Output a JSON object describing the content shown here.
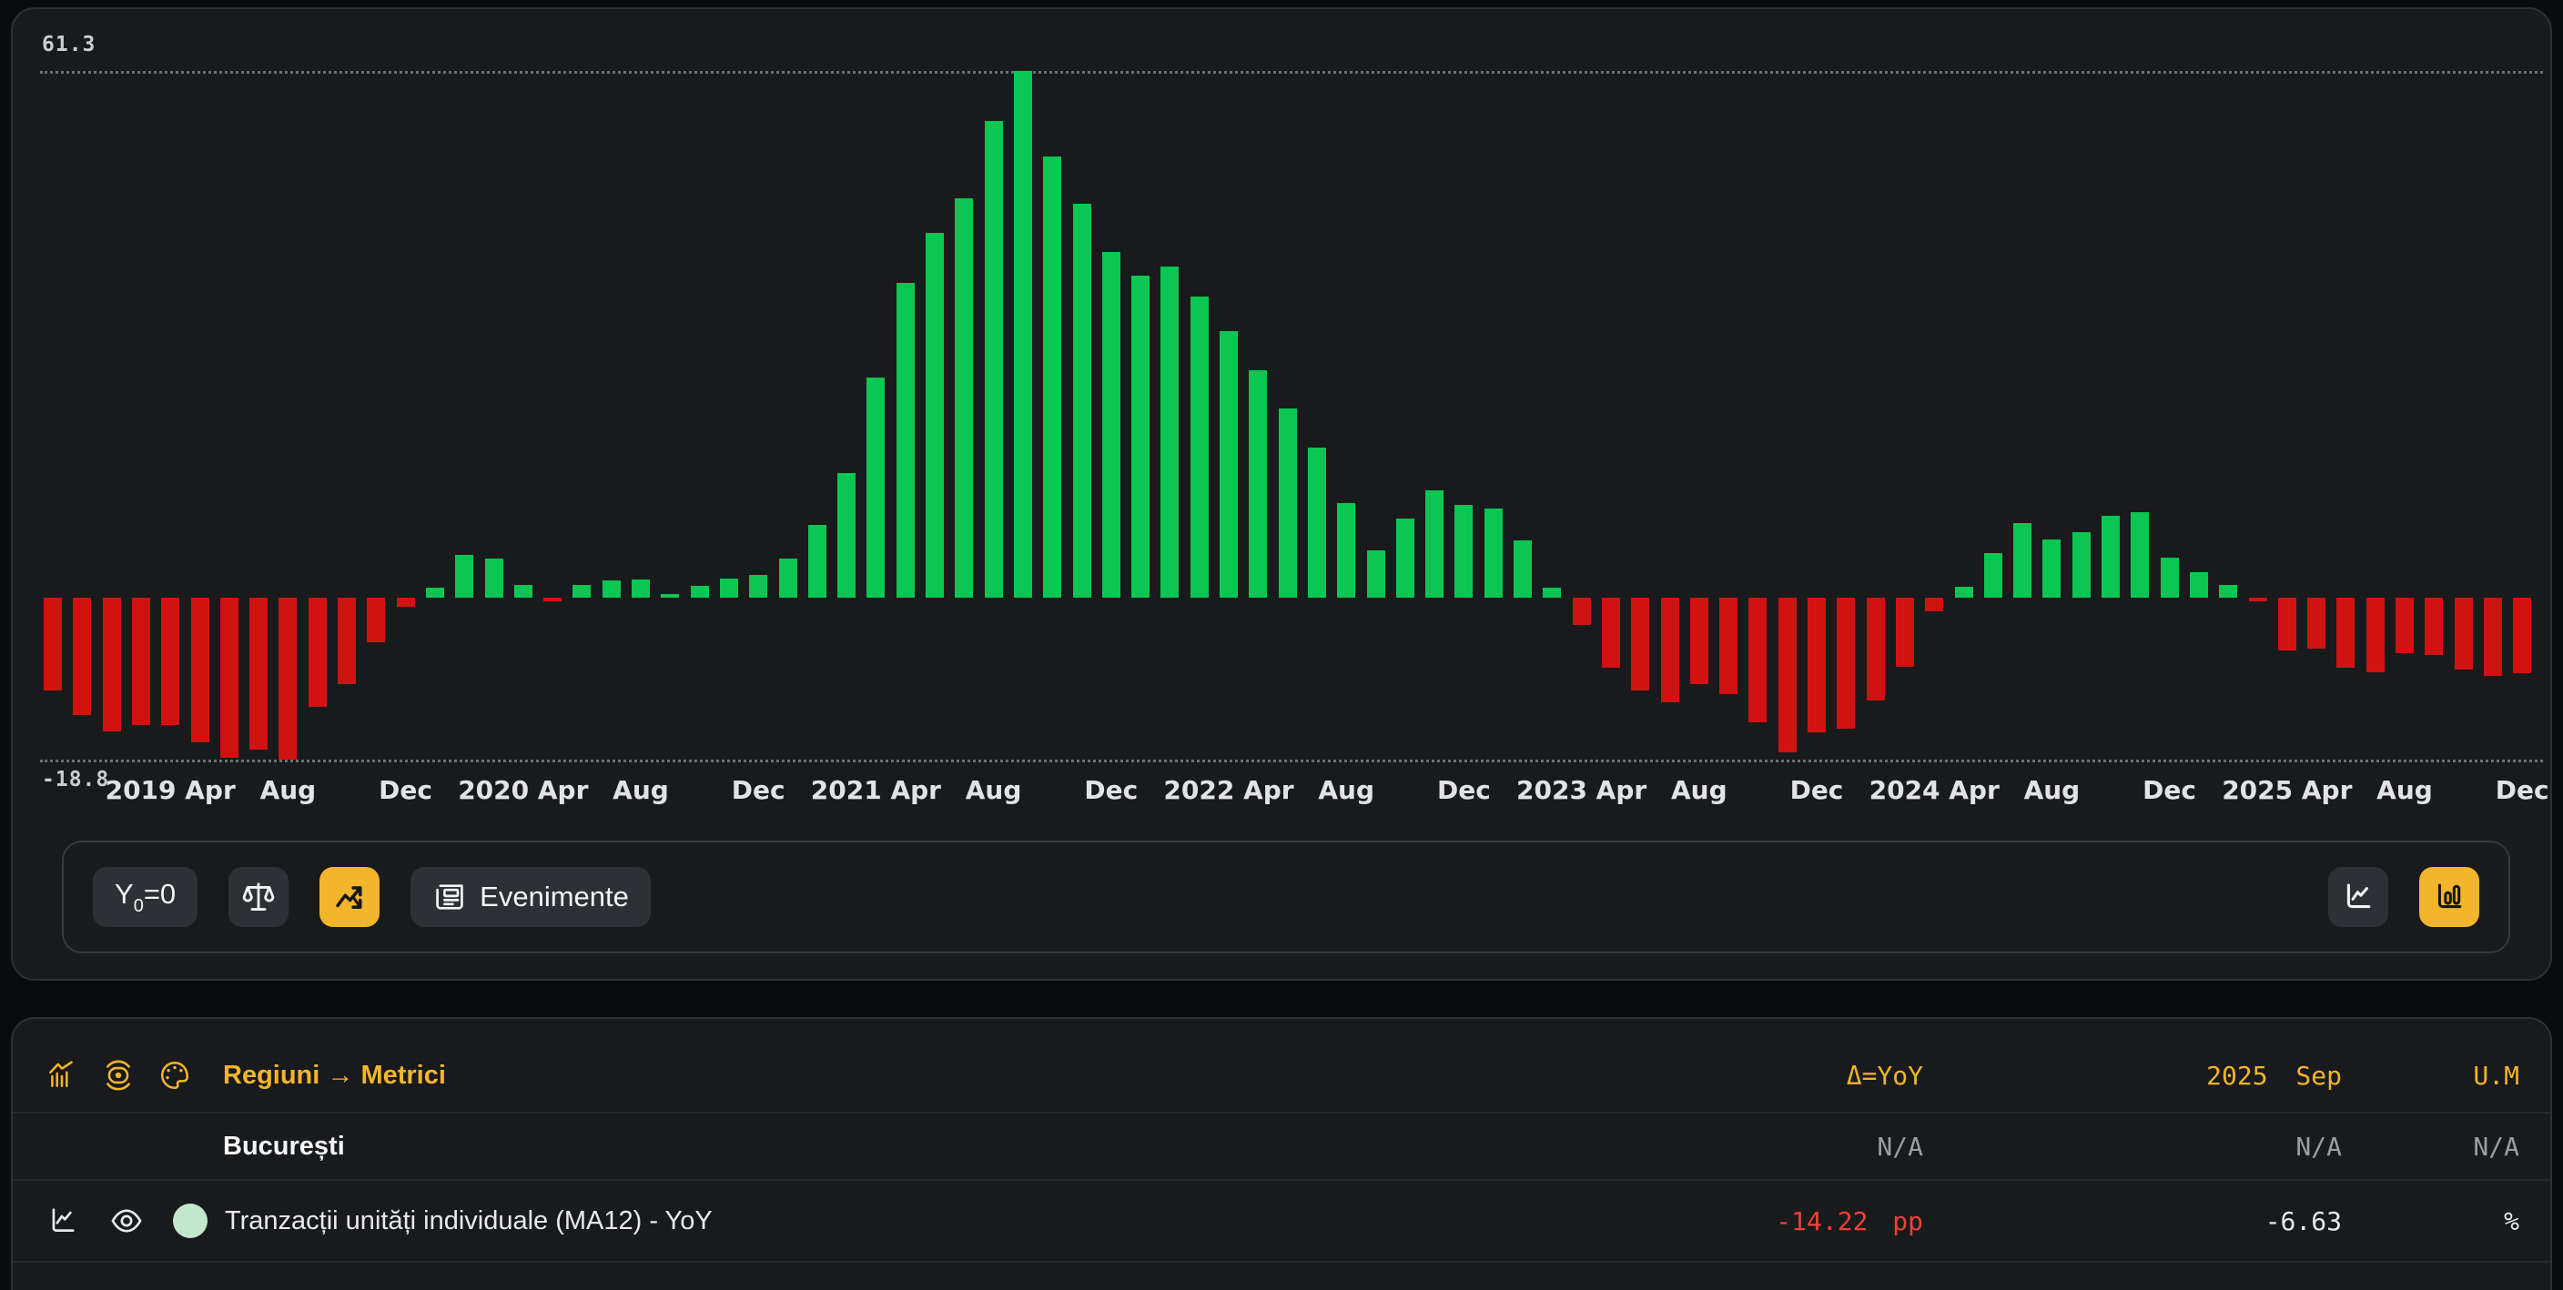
{
  "chart_data": {
    "type": "bar",
    "title": "Tranzacții unități individuale (MA12) - YoY — București",
    "ylabel": "pp YoY",
    "ymax": 61.3,
    "ymin": -18.8,
    "ymax_label": "61.3",
    "ymin_label": "-18.8",
    "grid": "dotted min/max guides only",
    "legend_position": "none",
    "positive_color": "#0cc653",
    "negative_color": "#d01211",
    "categories": [
      "2018 Dec",
      "2019 Jan",
      "2019 Feb",
      "2019 Mar",
      "2019 Apr",
      "2019 May",
      "2019 Jun",
      "2019 Jul",
      "2019 Aug",
      "2019 Sep",
      "2019 Oct",
      "2019 Nov",
      "2019 Dec",
      "2020 Jan",
      "2020 Feb",
      "2020 Mar",
      "2020 Apr",
      "2020 May",
      "2020 Jun",
      "2020 Jul",
      "2020 Aug",
      "2020 Sep",
      "2020 Oct",
      "2020 Nov",
      "2020 Dec",
      "2021 Jan",
      "2021 Feb",
      "2021 Mar",
      "2021 Apr",
      "2021 May",
      "2021 Jun",
      "2021 Jul",
      "2021 Aug",
      "2021 Sep",
      "2021 Oct",
      "2021 Nov",
      "2021 Dec",
      "2022 Jan",
      "2022 Feb",
      "2022 Mar",
      "2022 Apr",
      "2022 May",
      "2022 Jun",
      "2022 Jul",
      "2022 Aug",
      "2022 Sep",
      "2022 Oct",
      "2022 Nov",
      "2022 Dec",
      "2023 Jan",
      "2023 Feb",
      "2023 Mar",
      "2023 Apr",
      "2023 May",
      "2023 Jun",
      "2023 Jul",
      "2023 Aug",
      "2023 Sep",
      "2023 Oct",
      "2023 Nov",
      "2023 Dec",
      "2024 Jan",
      "2024 Feb",
      "2024 Mar",
      "2024 Apr",
      "2024 May",
      "2024 Jun",
      "2024 Jul",
      "2024 Aug",
      "2024 Sep",
      "2024 Oct",
      "2024 Nov",
      "2024 Dec",
      "2025 Jan",
      "2025 Feb",
      "2025 Mar",
      "2025 Apr",
      "2025 May",
      "2025 Jun",
      "2025 Jul",
      "2025 Aug",
      "2025 Sep",
      "2025 Oct",
      "2025 Nov",
      "2025 Dec"
    ],
    "values": [
      -10.8,
      -13.6,
      -15.6,
      -14.8,
      -14.8,
      -16.8,
      -18.6,
      -17.7,
      -18.8,
      -12.7,
      -10.0,
      -5.2,
      -1.1,
      1.2,
      5.0,
      4.5,
      1.5,
      -0.3,
      1.5,
      2.0,
      2.1,
      0.4,
      1.4,
      2.2,
      2.6,
      4.5,
      8.5,
      14.5,
      25.6,
      36.6,
      42.4,
      46.5,
      55.4,
      61.3,
      51.3,
      45.8,
      40.2,
      37.5,
      38.5,
      35.0,
      31.0,
      26.5,
      22.0,
      17.5,
      11.0,
      5.5,
      9.2,
      12.5,
      10.8,
      10.4,
      6.7,
      1.2,
      -3.2,
      -8.2,
      -10.8,
      -12.2,
      -10.0,
      -11.2,
      -14.5,
      -18.0,
      -15.7,
      -15.2,
      -12.0,
      -8.0,
      -1.6,
      1.3,
      5.2,
      8.7,
      6.8,
      7.6,
      9.5,
      10.0,
      4.7,
      3.0,
      1.5,
      -0.2,
      -6.1,
      -5.9,
      -8.2,
      -8.7,
      -6.5,
      -6.63,
      -8.4,
      -9.1,
      -8.8
    ],
    "x_ticks": [
      {
        "index": 4,
        "label": "2019 Apr"
      },
      {
        "index": 8,
        "label": "Aug"
      },
      {
        "index": 12,
        "label": "Dec"
      },
      {
        "index": 16,
        "label": "2020 Apr"
      },
      {
        "index": 20,
        "label": "Aug"
      },
      {
        "index": 24,
        "label": "Dec"
      },
      {
        "index": 28,
        "label": "2021 Apr"
      },
      {
        "index": 32,
        "label": "Aug"
      },
      {
        "index": 36,
        "label": "Dec"
      },
      {
        "index": 40,
        "label": "2022 Apr"
      },
      {
        "index": 44,
        "label": "Aug"
      },
      {
        "index": 48,
        "label": "Dec"
      },
      {
        "index": 52,
        "label": "2023 Apr"
      },
      {
        "index": 56,
        "label": "Aug"
      },
      {
        "index": 60,
        "label": "Dec"
      },
      {
        "index": 64,
        "label": "2024 Apr"
      },
      {
        "index": 68,
        "label": "Aug"
      },
      {
        "index": 72,
        "label": "Dec"
      },
      {
        "index": 76,
        "label": "2025 Apr"
      },
      {
        "index": 80,
        "label": "Aug"
      },
      {
        "index": 84,
        "label": "Dec"
      }
    ]
  },
  "toolbar": {
    "y0": {
      "main": "Y",
      "sub": "0",
      "rest": "=0"
    },
    "evenimente_label": "Evenimente",
    "accent_color": "#f2b52b"
  },
  "table": {
    "header": {
      "breadcrumb": "Regiuni → Metrici",
      "delta": "Δ=YoY",
      "period": "2025 Sep",
      "unit": "U.M"
    },
    "rows": {
      "region": {
        "name": "București",
        "delta": "N/A",
        "value": "N/A",
        "unit": "N/A"
      },
      "metric": {
        "name": "Tranzacții unități individuale (MA12) - YoY",
        "delta": "-14.22 pp",
        "value": "-6.63",
        "unit": "%",
        "delta_color": "#ef4138",
        "series_dot_color": "#c3e6cd"
      }
    }
  }
}
